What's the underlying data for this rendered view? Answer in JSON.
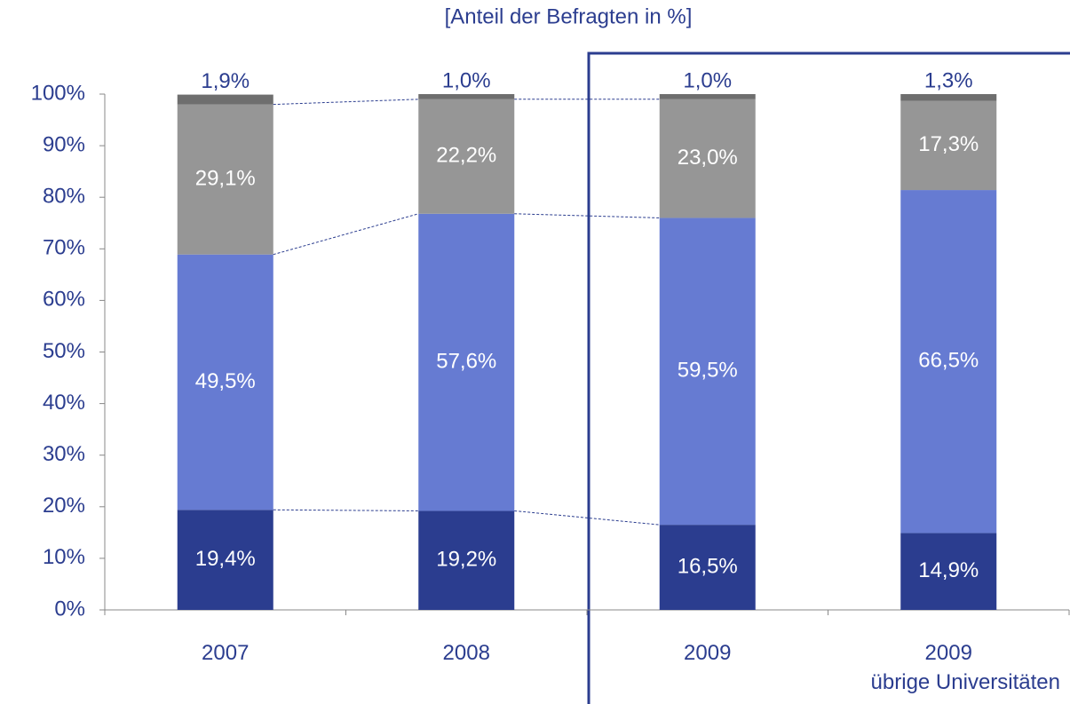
{
  "chart_data": {
    "type": "stacked_bar",
    "title": "[Anteil der Befragten in %]",
    "categories": [
      "2007",
      "2008",
      "2009",
      "2009\nübrige Universitäten"
    ],
    "series": [
      {
        "color": "#2b3d8f",
        "values": [
          19.4,
          19.2,
          16.5,
          14.9
        ],
        "value_labels": [
          "19,4%",
          "19,2%",
          "16,5%",
          "14,9%"
        ]
      },
      {
        "color": "#667bd2",
        "values": [
          49.5,
          57.6,
          59.5,
          66.5
        ],
        "value_labels": [
          "49,5%",
          "57,6%",
          "59,5%",
          "66,5%"
        ]
      },
      {
        "color": "#969696",
        "values": [
          29.1,
          22.2,
          23.0,
          17.3
        ],
        "value_labels": [
          "29,1%",
          "22,2%",
          "23,0%",
          "17,3%"
        ]
      },
      {
        "color": "#6e6e6e",
        "values": [
          1.9,
          1.0,
          1.0,
          1.3
        ],
        "value_labels": [
          "1,9%",
          "1,0%",
          "1,0%",
          "1,3%"
        ]
      }
    ],
    "ylim": [
      0,
      100
    ],
    "yticks": [
      {
        "value": 0,
        "label": "0%"
      },
      {
        "value": 10,
        "label": "10%"
      },
      {
        "value": 20,
        "label": "20%"
      },
      {
        "value": 30,
        "label": "30%"
      },
      {
        "value": 40,
        "label": "40%"
      },
      {
        "value": 50,
        "label": "50%"
      },
      {
        "value": 60,
        "label": "60%"
      },
      {
        "value": 70,
        "label": "70%"
      },
      {
        "value": 80,
        "label": "80%"
      },
      {
        "value": 90,
        "label": "90%"
      },
      {
        "value": 100,
        "label": "100%"
      }
    ]
  }
}
